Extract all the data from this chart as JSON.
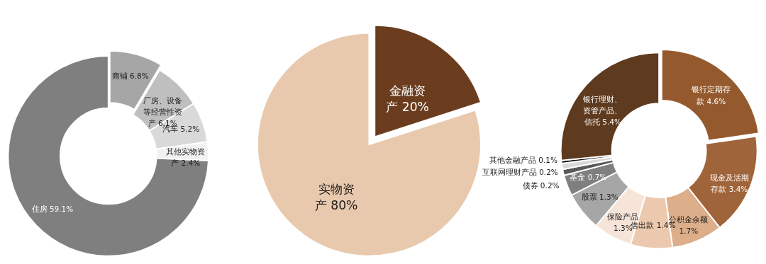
{
  "chart_data": [
    {
      "type": "donut",
      "categories": [
        "商铺",
        "厂房、设备等经营性资产",
        "汽车",
        "其他实物资产",
        "住房"
      ],
      "values": [
        6.8,
        6.1,
        5.2,
        2.4,
        59.1
      ],
      "value_labels": [
        "6.8%",
        "6.1%",
        "5.2%",
        "2.4%",
        "59.1%"
      ],
      "colors": [
        "#a6a6a6",
        "#bfbfbf",
        "#d9d9d9",
        "#f2f2f2",
        "#7f7f7f"
      ]
    },
    {
      "type": "pie",
      "categories": [
        "金融资产",
        "实物资产"
      ],
      "values": [
        20,
        80
      ],
      "value_labels": [
        "20%",
        "80%"
      ],
      "colors": [
        "#6b3d1e",
        "#e9c9ae"
      ]
    },
    {
      "type": "donut",
      "categories": [
        "银行定期存款",
        "现金及活期存款",
        "公积金余额",
        "借出款",
        "保险产品",
        "股票",
        "基金",
        "债券",
        "互联网理财产品",
        "其他金融产品",
        "银行理财、资管产品、信托"
      ],
      "values": [
        4.6,
        3.4,
        1.7,
        1.4,
        1.3,
        1.3,
        0.7,
        0.2,
        0.2,
        0.1,
        5.4
      ],
      "value_labels": [
        "4.6%",
        "3.4%",
        "1.7%",
        "1.4%",
        "1.3%",
        "1.3%",
        "0.7%",
        "0.2%",
        "0.2%",
        "0.1%",
        "5.4%"
      ],
      "colors": [
        "#945a2e",
        "#a0643a",
        "#dcae8a",
        "#ecc9ae",
        "#f6e4d8",
        "#a6a6a6",
        "#7f7f7f",
        "#595959",
        "#d9d9d9",
        "#111111",
        "#5e3a1e"
      ]
    }
  ]
}
